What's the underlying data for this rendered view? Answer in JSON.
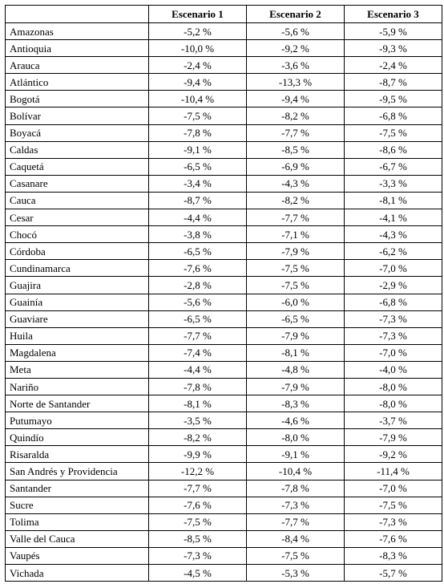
{
  "table": {
    "columns": [
      "Escenario 1",
      "Escenario 2",
      "Escenario 3"
    ],
    "rows": [
      [
        "Amazonas",
        "-5,2 %",
        "-5,6 %",
        "-5,9 %"
      ],
      [
        "Antioquia",
        "-10,0 %",
        "-9,2 %",
        "-9,3 %"
      ],
      [
        "Arauca",
        "-2,4 %",
        "-3,6 %",
        "-2,4 %"
      ],
      [
        "Atlántico",
        "-9,4 %",
        "-13,3 %",
        "-8,7 %"
      ],
      [
        "Bogotá",
        "-10,4 %",
        "-9,4 %",
        "-9,5 %"
      ],
      [
        "Bolívar",
        "-7,5 %",
        "-8,2 %",
        "-6,8 %"
      ],
      [
        "Boyacá",
        "-7,8 %",
        "-7,7 %",
        "-7,5 %"
      ],
      [
        "Caldas",
        "-9,1 %",
        "-8,5 %",
        "-8,6 %"
      ],
      [
        "Caquetá",
        "-6,5 %",
        "-6,9 %",
        "-6,7 %"
      ],
      [
        "Casanare",
        "-3,4 %",
        "-4,3 %",
        "-3,3 %"
      ],
      [
        "Cauca",
        "-8,7 %",
        "-8,2 %",
        "-8,1 %"
      ],
      [
        "Cesar",
        "-4,4 %",
        "-7,7 %",
        "-4,1 %"
      ],
      [
        "Chocó",
        "-3,8 %",
        "-7,1 %",
        "-4,3 %"
      ],
      [
        "Córdoba",
        "-6,5 %",
        "-7,9 %",
        "-6,2 %"
      ],
      [
        "Cundinamarca",
        "-7,6 %",
        "-7,5 %",
        "-7,0 %"
      ],
      [
        "Guajira",
        "-2,8 %",
        "-7,5 %",
        "-2,9 %"
      ],
      [
        "Guainía",
        "-5,6 %",
        "-6,0 %",
        "-6,8 %"
      ],
      [
        "Guaviare",
        "-6,5 %",
        "-6,5 %",
        "-7,3 %"
      ],
      [
        "Huila",
        "-7,7 %",
        "-7,9 %",
        "-7,3 %"
      ],
      [
        "Magdalena",
        "-7,4 %",
        "-8,1 %",
        "-7,0 %"
      ],
      [
        "Meta",
        "-4,4 %",
        "-4,8 %",
        "-4,0 %"
      ],
      [
        "Nariño",
        "-7,8 %",
        "-7,9 %",
        "-8,0 %"
      ],
      [
        "Norte de Santander",
        "-8,1 %",
        "-8,3 %",
        "-8,0 %"
      ],
      [
        "Putumayo",
        "-3,5 %",
        "-4,6 %",
        "-3,7 %"
      ],
      [
        "Quindío",
        "-8,2 %",
        "-8,0 %",
        "-7,9 %"
      ],
      [
        "Risaralda",
        "-9,9 %",
        "-9,1 %",
        "-9,2 %"
      ],
      [
        "San Andrés y Providencia",
        "-12,2 %",
        "-10,4 %",
        "-11,4 %"
      ],
      [
        "Santander",
        "-7,7 %",
        "-7,8 %",
        "-7,0 %"
      ],
      [
        "Sucre",
        "-7,6 %",
        "-7,3 %",
        "-7,5 %"
      ],
      [
        "Tolima",
        "-7,5 %",
        "-7,7 %",
        "-7,3 %"
      ],
      [
        "Valle del Cauca",
        "-8,5 %",
        "-8,4 %",
        "-7,6 %"
      ],
      [
        "Vaupés",
        "-7,3 %",
        "-7,5 %",
        "-8,3 %"
      ],
      [
        "Vichada",
        "-4,5 %",
        "-5,3 %",
        "-5,7 %"
      ]
    ]
  }
}
